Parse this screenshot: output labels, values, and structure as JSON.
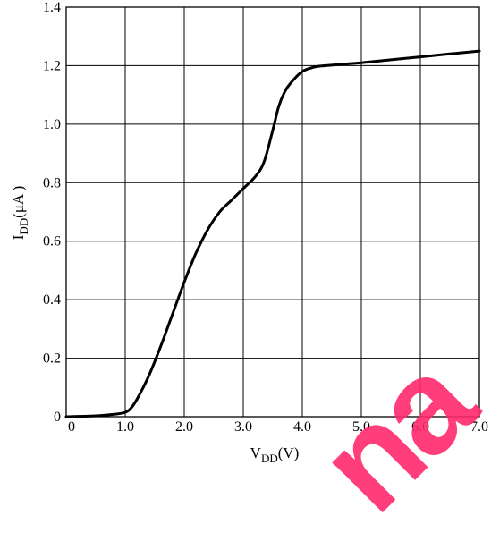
{
  "chart_data": {
    "type": "line",
    "xlabel": {
      "main": "V",
      "sub": "DD",
      "unit": "(V)"
    },
    "ylabel": {
      "main": "I",
      "sub": "DD",
      "unit": "(μA )"
    },
    "xlim": [
      0,
      7
    ],
    "ylim": [
      0,
      1.4
    ],
    "xticks": [
      0,
      1,
      2,
      3,
      4,
      5,
      6,
      7
    ],
    "xtick_labels": [
      "0",
      "1.0",
      "2.0",
      "3.0",
      "4.0",
      "5.0",
      "6.0",
      "7.0"
    ],
    "yticks": [
      0,
      0.2,
      0.4,
      0.6,
      0.8,
      1.0,
      1.2,
      1.4
    ],
    "ytick_labels": [
      "0",
      "0.2",
      "0.4",
      "0.6",
      "0.8",
      "1.0",
      "1.2",
      "1.4"
    ],
    "grid": true,
    "series": [
      {
        "color": "#000000",
        "x": [
          0,
          0.5,
          0.8,
          1.0,
          1.1,
          1.2,
          1.4,
          1.6,
          1.8,
          2.0,
          2.2,
          2.4,
          2.6,
          2.8,
          3.0,
          3.2,
          3.35,
          3.5,
          3.6,
          3.7,
          3.8,
          4.0,
          4.2,
          4.4,
          5.0,
          5.5,
          6.0,
          6.5,
          7.0
        ],
        "y": [
          0,
          0.003,
          0.008,
          0.015,
          0.03,
          0.06,
          0.14,
          0.24,
          0.35,
          0.46,
          0.56,
          0.64,
          0.7,
          0.74,
          0.78,
          0.82,
          0.87,
          0.98,
          1.06,
          1.11,
          1.14,
          1.18,
          1.195,
          1.2,
          1.21,
          1.22,
          1.23,
          1.24,
          1.25
        ]
      }
    ]
  }
}
